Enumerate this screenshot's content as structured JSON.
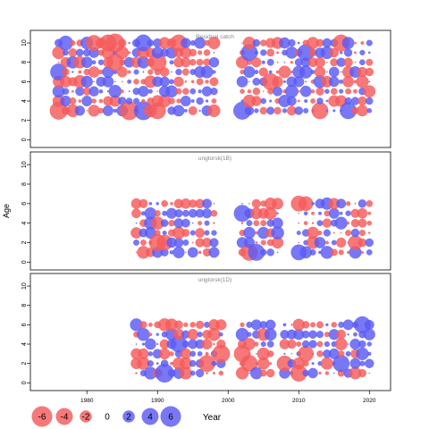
{
  "chart_data": {
    "type": "scatter",
    "subtype": "bubble-residuals",
    "ylabel": "Age",
    "xlabel": "Year",
    "xlim": [
      1972,
      2023
    ],
    "x_ticks": [
      1980,
      1990,
      2000,
      2010,
      2020
    ],
    "ylim": [
      -0.8,
      11.3
    ],
    "y_ticks": [
      0,
      2,
      4,
      6,
      8,
      10
    ],
    "colors": {
      "positive": "#5a5af5",
      "negative": "#f55a5a"
    },
    "legend": {
      "position": "bottom-left",
      "values": [
        -6,
        -4,
        -2,
        0,
        2,
        4,
        6
      ],
      "labels": [
        "-6",
        "-4",
        "-2",
        "0",
        "2",
        "4",
        "6"
      ]
    },
    "panels": [
      {
        "title": "Residual catch",
        "years": [
          1976,
          2020
        ],
        "ages": [
          3,
          10
        ],
        "gaps": [
          [
            1999,
            2001
          ]
        ],
        "seed": 7,
        "big": [
          [
            1976,
            3,
            -4.5
          ],
          [
            1976,
            7,
            4
          ],
          [
            1977,
            10,
            3
          ],
          [
            1981,
            10,
            -3.5
          ],
          [
            1983,
            10,
            -4
          ],
          [
            1984,
            10,
            -5
          ],
          [
            1984,
            8,
            -4
          ],
          [
            1986,
            3,
            -5
          ],
          [
            1988,
            3,
            5
          ],
          [
            1988,
            10,
            4
          ],
          [
            1990,
            3,
            -4
          ],
          [
            1990,
            8,
            -4.5
          ],
          [
            1993,
            10,
            -4
          ],
          [
            1999,
            6,
            -5.5
          ],
          [
            2002,
            3,
            4.5
          ],
          [
            2003,
            9,
            4
          ],
          [
            2006,
            6,
            -4
          ],
          [
            2011,
            9,
            4
          ],
          [
            2016,
            10,
            -4
          ],
          [
            2013,
            3,
            -4
          ],
          [
            2017,
            3,
            4
          ]
        ]
      },
      {
        "title": "ungtorsk(1B)",
        "years": [
          1987,
          2020
        ],
        "ages": [
          1,
          6
        ],
        "gaps": [
          [
            1999,
            2001
          ],
          [
            2008,
            2009
          ]
        ],
        "seed": 19,
        "big": [
          [
            1990,
            2,
            -4
          ],
          [
            1991,
            2,
            -3.5
          ],
          [
            2002,
            5,
            4
          ],
          [
            2003,
            1,
            -4
          ],
          [
            2004,
            1,
            4
          ],
          [
            2010,
            1,
            3.5
          ],
          [
            2010,
            6,
            -3.5
          ],
          [
            2018,
            2,
            -3
          ],
          [
            2011,
            6,
            -3
          ]
        ]
      },
      {
        "title": "ungtorsk(1D)",
        "years": [
          1987,
          2020
        ],
        "ages": [
          1,
          6
        ],
        "gaps": [
          [
            2000,
            2001
          ],
          [
            2007,
            2007
          ]
        ],
        "seed": 31,
        "big": [
          [
            1991,
            1,
            5
          ],
          [
            1993,
            4,
            4
          ],
          [
            1997,
            2,
            -4
          ],
          [
            1999,
            3,
            -4.5
          ],
          [
            2002,
            3,
            -4
          ],
          [
            2003,
            2,
            -4
          ],
          [
            2008,
            2,
            -3.5
          ],
          [
            2010,
            1,
            -4
          ],
          [
            2011,
            3,
            -3.5
          ],
          [
            2016,
            2,
            4
          ],
          [
            2019,
            6,
            4
          ]
        ]
      }
    ]
  }
}
